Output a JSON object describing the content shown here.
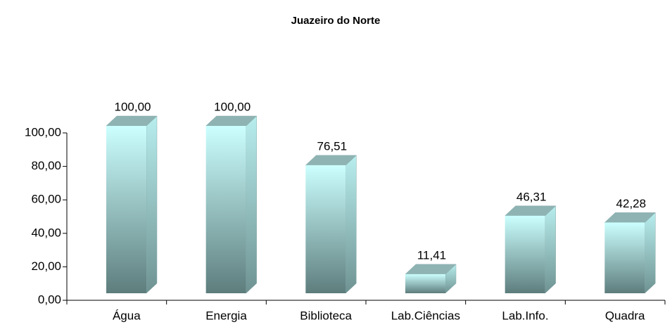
{
  "chart_data": {
    "type": "bar3d",
    "title": "Juazeiro do Norte",
    "categories": [
      "Água",
      "Energia",
      "Biblioteca",
      "Lab.Ciências",
      "Lab.Info.",
      "Quadra"
    ],
    "values": [
      100,
      100,
      76.51,
      11.41,
      46.31,
      42.28
    ],
    "value_labels": [
      "100,00",
      "100,00",
      "76,51",
      "11,41",
      "46,31",
      "42,28"
    ],
    "ylim": [
      0,
      100
    ],
    "yticks": [
      {
        "value": 0,
        "label": "0,00"
      },
      {
        "value": 20,
        "label": "20,00"
      },
      {
        "value": 40,
        "label": "40,00"
      },
      {
        "value": 60,
        "label": "60,00"
      },
      {
        "value": 80,
        "label": "80,00"
      },
      {
        "value": 100,
        "label": "100,00"
      }
    ]
  }
}
